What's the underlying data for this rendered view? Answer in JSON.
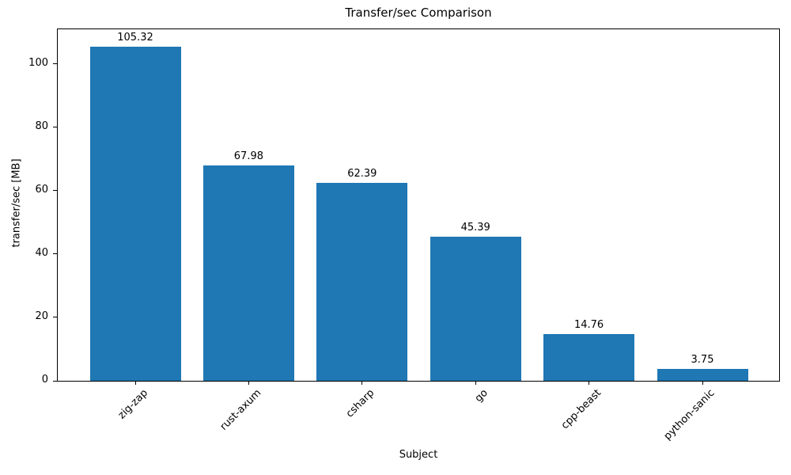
{
  "chart_data": {
    "type": "bar",
    "title": "Transfer/sec Comparison",
    "xlabel": "Subject",
    "ylabel": "transfer/sec [MB]",
    "categories": [
      "zig-zap",
      "rust-axum",
      "csharp",
      "go",
      "cpp-beast",
      "python-sanic"
    ],
    "values": [
      105.32,
      67.98,
      62.39,
      45.39,
      14.76,
      3.75
    ],
    "bar_value_labels": [
      "105.32",
      "67.98",
      "62.39",
      "45.39",
      "14.76",
      "3.75"
    ],
    "yticks": [
      0,
      20,
      40,
      60,
      80,
      100
    ],
    "ylim": [
      0,
      110.9
    ],
    "xtick_rotation_deg": 45,
    "grid": "off",
    "legend": "none",
    "bar_color": "#1f77b4",
    "axis_color": "#000000",
    "background_color": "#ffffff"
  }
}
